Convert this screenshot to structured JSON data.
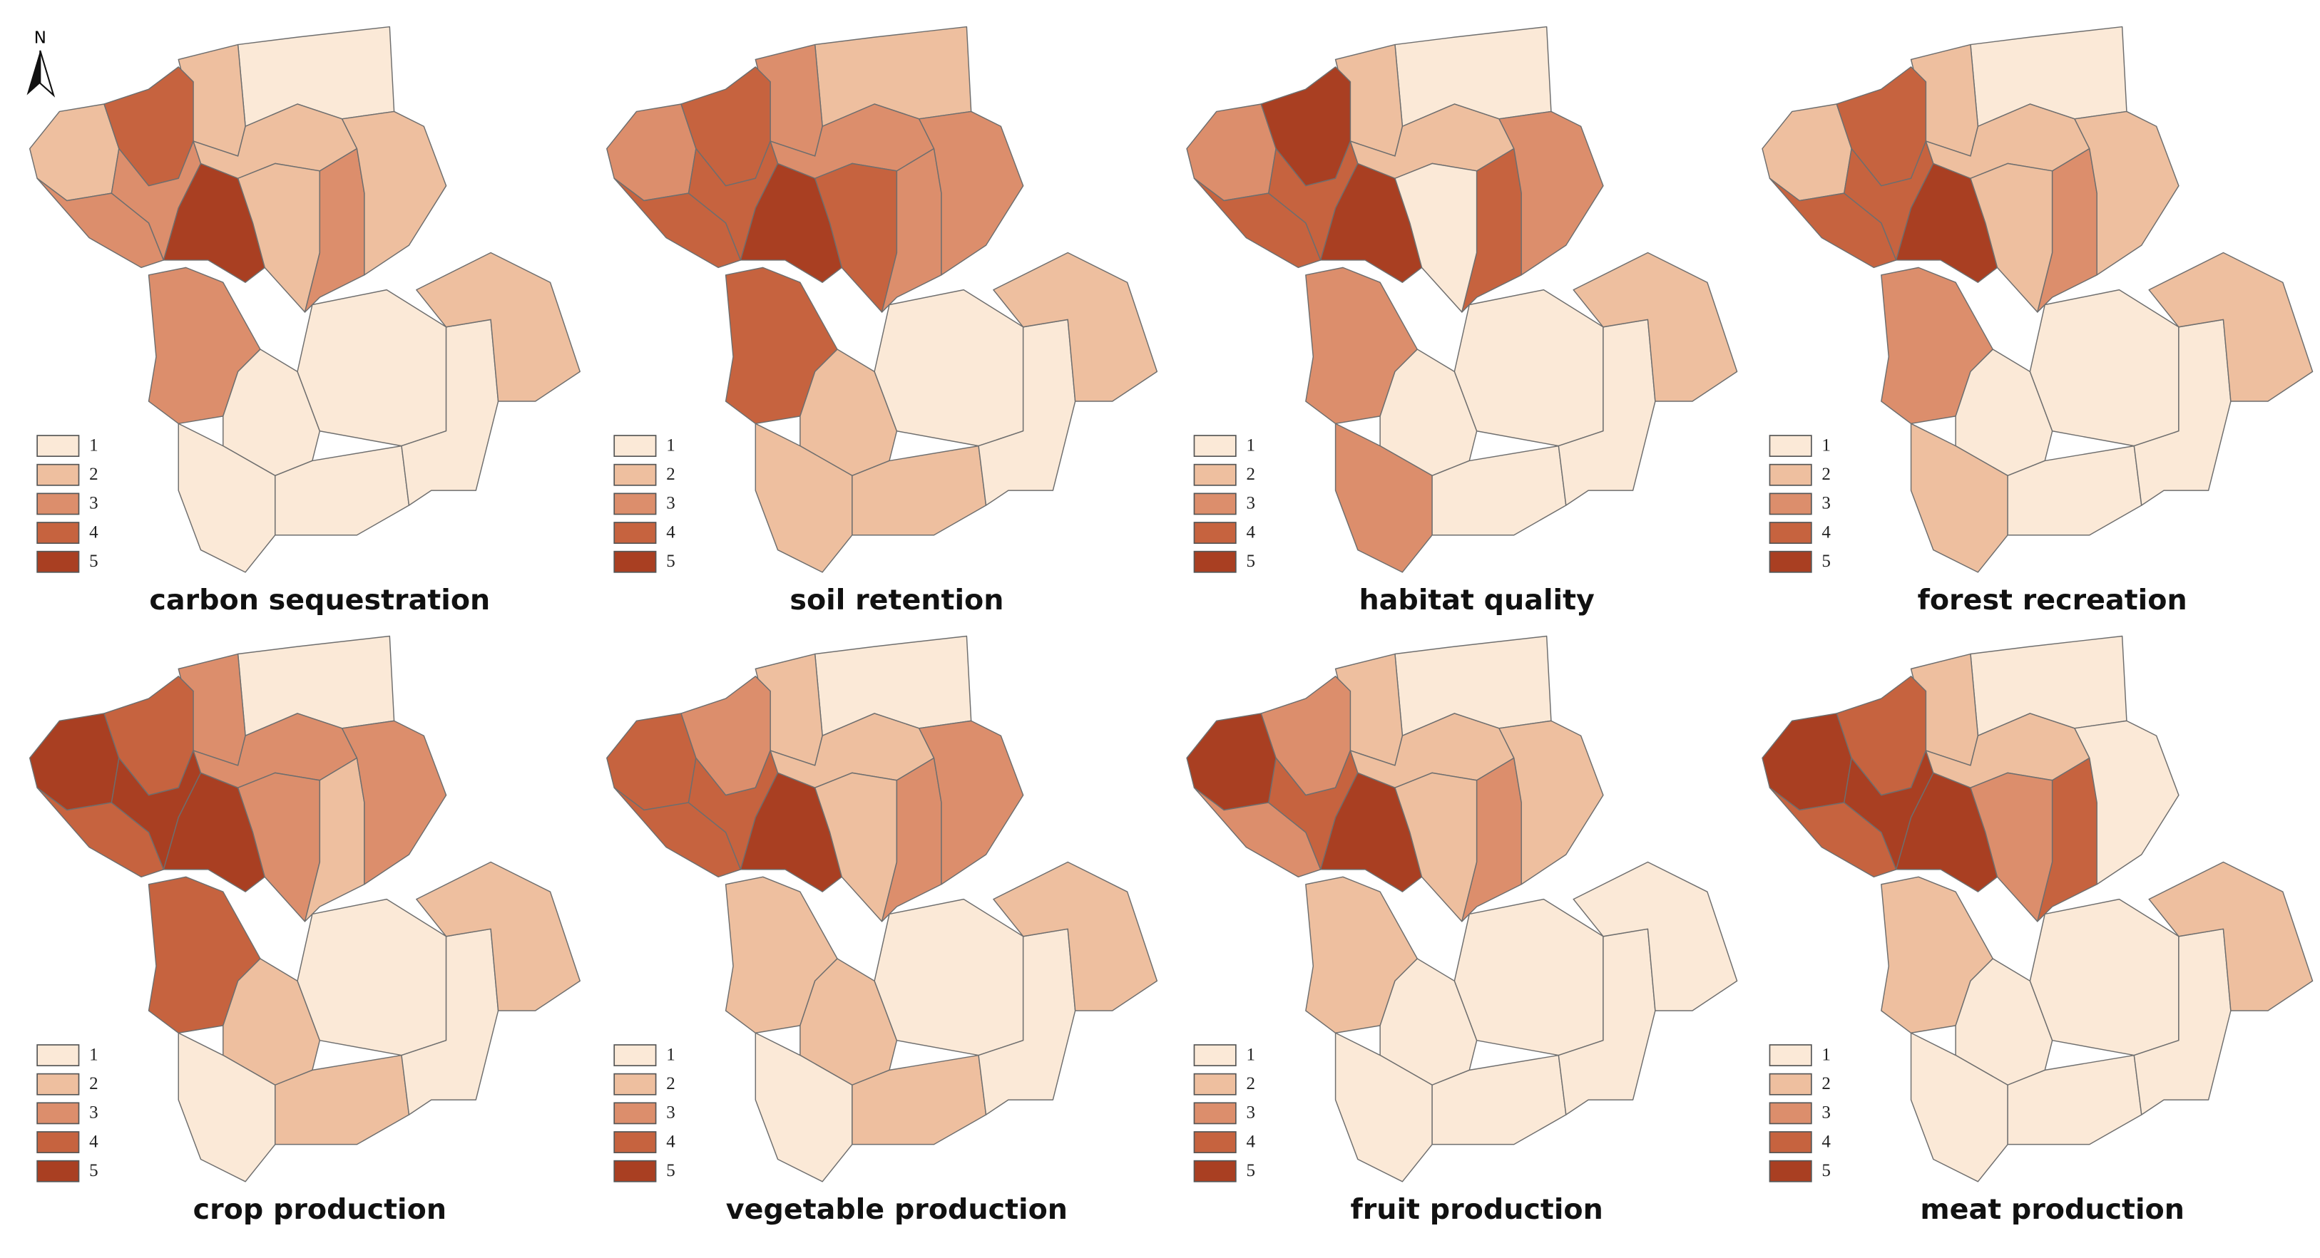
{
  "north_label": "N",
  "legend": {
    "classes": [
      1,
      2,
      3,
      4,
      5
    ],
    "colors": [
      "#fbe9d7",
      "#eebf9f",
      "#dc8e6c",
      "#c6633f",
      "#a93f22"
    ]
  },
  "maps": [
    {
      "title": "carbon sequestration",
      "classes": [
        1,
        2,
        2,
        4,
        3,
        3,
        5,
        2,
        2,
        3,
        2,
        3,
        1,
        1,
        1,
        1,
        1,
        2
      ]
    },
    {
      "title": "soil retention",
      "classes": [
        2,
        3,
        3,
        4,
        4,
        4,
        5,
        3,
        4,
        3,
        3,
        4,
        2,
        2,
        2,
        1,
        1,
        2
      ]
    },
    {
      "title": "habitat quality",
      "classes": [
        1,
        2,
        3,
        5,
        4,
        4,
        5,
        2,
        1,
        4,
        3,
        3,
        1,
        3,
        1,
        1,
        1,
        2
      ]
    },
    {
      "title": "forest recreation",
      "classes": [
        1,
        2,
        2,
        4,
        4,
        4,
        5,
        2,
        2,
        3,
        2,
        3,
        1,
        2,
        1,
        1,
        1,
        2
      ]
    },
    {
      "title": "crop production",
      "classes": [
        1,
        3,
        5,
        4,
        4,
        5,
        5,
        3,
        3,
        2,
        3,
        4,
        2,
        1,
        2,
        1,
        1,
        2
      ]
    },
    {
      "title": "vegetable production",
      "classes": [
        1,
        2,
        4,
        3,
        4,
        4,
        5,
        2,
        2,
        3,
        3,
        2,
        2,
        1,
        2,
        1,
        1,
        2
      ]
    },
    {
      "title": "fruit production",
      "classes": [
        1,
        2,
        5,
        3,
        3,
        4,
        5,
        2,
        2,
        3,
        2,
        2,
        1,
        1,
        1,
        1,
        1,
        1
      ]
    },
    {
      "title": "meat production",
      "classes": [
        1,
        2,
        5,
        4,
        4,
        5,
        5,
        2,
        3,
        4,
        1,
        2,
        1,
        1,
        1,
        1,
        1,
        2
      ]
    }
  ]
}
